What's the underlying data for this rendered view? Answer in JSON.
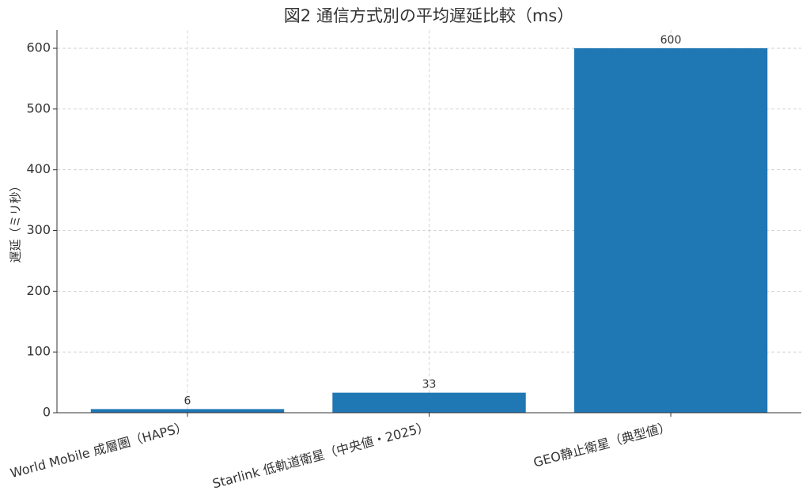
{
  "chart_data": {
    "type": "bar",
    "title": "図2 通信方式別の平均遅延比較（ms）",
    "y_label": "遅延（ミリ秒）",
    "categories": [
      "World Mobile 成層圏（HAPS）",
      "Starlink 低軌道衛星（中央値・2025）",
      "GEO静止衛星（典型値）"
    ],
    "values": [
      6,
      33,
      600
    ],
    "color": "#1f77b4",
    "ylim": [
      0,
      630
    ],
    "yticks": [
      0,
      100,
      200,
      300,
      400,
      500,
      600
    ],
    "grid": true
  }
}
